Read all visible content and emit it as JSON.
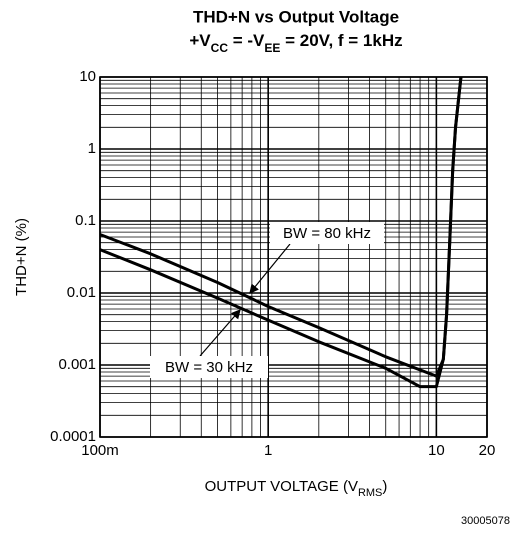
{
  "chart_data": {
    "type": "line",
    "title": "THD+N vs Output Voltage",
    "subtitle": [
      "+V",
      "CC",
      " = -V",
      "EE",
      " = 20V, f = 1kHz"
    ],
    "x_label": [
      "OUTPUT VOLTAGE (V",
      "RMS",
      ")"
    ],
    "y_label": "THD+N (%)",
    "footnote": "30005078",
    "log_x": true,
    "log_y": true,
    "grid": true,
    "xlim": [
      0.1,
      20
    ],
    "ylim": [
      0.0001,
      10
    ],
    "xticks": [
      {
        "value": 0.1,
        "label": "100m"
      },
      1,
      10,
      20
    ],
    "yticks": [
      0.0001,
      0.001,
      0.01,
      0.1,
      1,
      10
    ],
    "xminor": [
      0.2,
      0.3,
      0.4,
      0.5,
      0.6,
      0.7,
      0.8,
      0.9,
      2,
      3,
      4,
      5,
      6,
      7,
      8,
      9
    ],
    "yminor": [
      0.0002,
      0.0003,
      0.0004,
      0.0005,
      0.0006,
      0.0007,
      0.0008,
      0.0009,
      0.002,
      0.003,
      0.004,
      0.005,
      0.006,
      0.007,
      0.008,
      0.009,
      0.02,
      0.03,
      0.04,
      0.05,
      0.06,
      0.07,
      0.08,
      0.09,
      0.2,
      0.3,
      0.4,
      0.5,
      0.6,
      0.7,
      0.8,
      0.9,
      2,
      3,
      4,
      5,
      6,
      7,
      8,
      9
    ],
    "series": [
      {
        "name": "BW = 80 kHz",
        "color": "#000000",
        "x": [
          0.1,
          0.2,
          0.5,
          1,
          2,
          5,
          10,
          11,
          11.5,
          12,
          12.5,
          13,
          14
        ],
        "values": [
          0.065,
          0.035,
          0.014,
          0.0065,
          0.0033,
          0.0013,
          0.0007,
          0.0012,
          0.005,
          0.05,
          0.5,
          2,
          10
        ]
      },
      {
        "name": "BW = 30 kHz",
        "color": "#000000",
        "x": [
          0.1,
          0.2,
          0.5,
          1,
          2,
          5,
          8,
          10,
          11,
          11.5,
          12,
          12.5,
          13,
          14
        ],
        "values": [
          0.04,
          0.021,
          0.0085,
          0.0042,
          0.0021,
          0.0009,
          0.0005,
          0.0005,
          0.0012,
          0.005,
          0.05,
          0.5,
          2,
          10
        ]
      }
    ]
  }
}
